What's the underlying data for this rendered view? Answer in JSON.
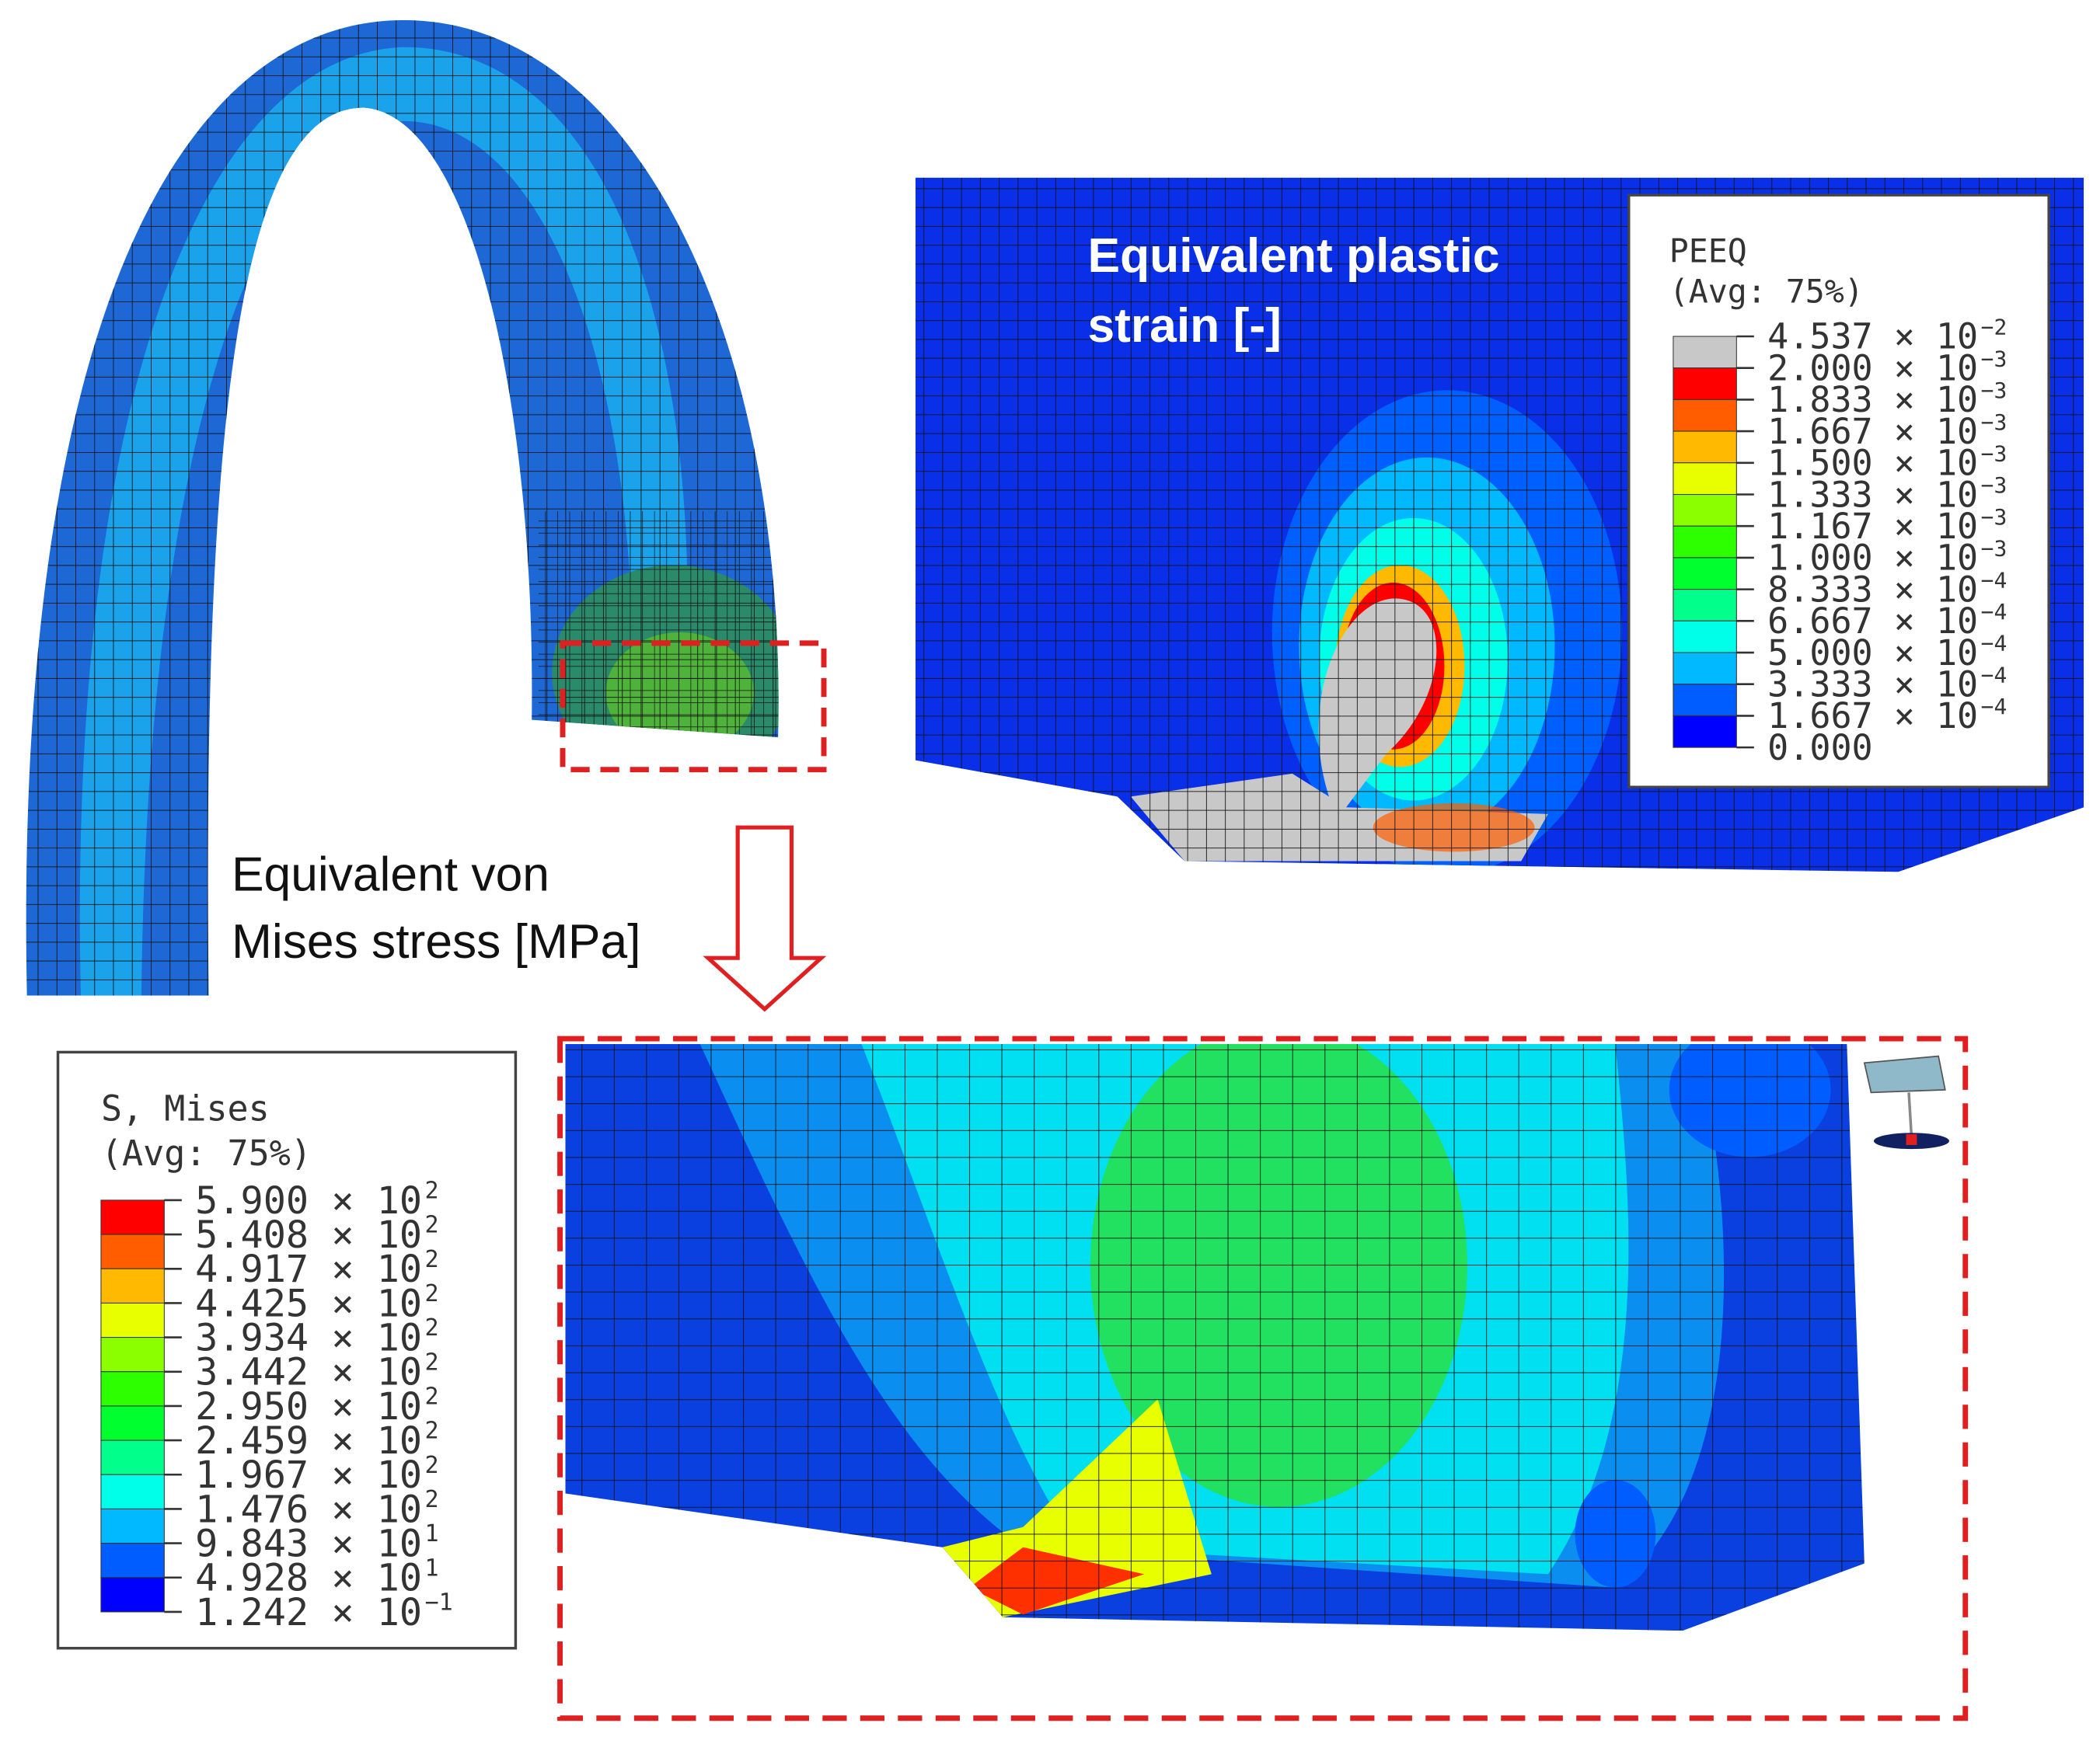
{
  "stress_label": {
    "line1": "Equivalent von",
    "line2": "Mises stress [MPa]"
  },
  "strain_label": {
    "line1": "Equivalent plastic",
    "line2": "strain [-]"
  },
  "mises_legend": {
    "title": "S, Mises",
    "subtitle": "(Avg: 75%)",
    "band_colors": [
      "#ff0000",
      "#ff5d00",
      "#ffb900",
      "#e8ff00",
      "#8bff00",
      "#2eff00",
      "#00ff2e",
      "#00ff8b",
      "#00ffe8",
      "#00b9ff",
      "#005dff",
      "#0000ff"
    ],
    "entries": [
      {
        "text": "5.900 × 10",
        "exp": "2"
      },
      {
        "text": "5.408 × 10",
        "exp": "2"
      },
      {
        "text": "4.917 × 10",
        "exp": "2"
      },
      {
        "text": "4.425 × 10",
        "exp": "2"
      },
      {
        "text": "3.934 × 10",
        "exp": "2"
      },
      {
        "text": "3.442 × 10",
        "exp": "2"
      },
      {
        "text": "2.950 × 10",
        "exp": "2"
      },
      {
        "text": "2.459 × 10",
        "exp": "2"
      },
      {
        "text": "1.967 × 10",
        "exp": "2"
      },
      {
        "text": "1.476 × 10",
        "exp": "2"
      },
      {
        "text": "9.843 × 10",
        "exp": "1"
      },
      {
        "text": "4.928 × 10",
        "exp": "1"
      },
      {
        "text": "1.242 × 10",
        "exp": "−1"
      }
    ]
  },
  "peeq_legend": {
    "title": "PEEQ",
    "subtitle": "(Avg: 75%)",
    "band_colors": [
      "#c8c8c8",
      "#ff0000",
      "#ff5d00",
      "#ffb900",
      "#e8ff00",
      "#8bff00",
      "#2eff00",
      "#00ff2e",
      "#00ff8b",
      "#00ffe8",
      "#00b9ff",
      "#005dff",
      "#0000ff"
    ],
    "entries": [
      {
        "text": "4.537 × 10",
        "exp": "−2"
      },
      {
        "text": "2.000 × 10",
        "exp": "−3"
      },
      {
        "text": "1.833 × 10",
        "exp": "−3"
      },
      {
        "text": "1.667 × 10",
        "exp": "−3"
      },
      {
        "text": "1.500 × 10",
        "exp": "−3"
      },
      {
        "text": "1.333 × 10",
        "exp": "−3"
      },
      {
        "text": "1.167 × 10",
        "exp": "−3"
      },
      {
        "text": "1.000 × 10",
        "exp": "−3"
      },
      {
        "text": "8.333 × 10",
        "exp": "−4"
      },
      {
        "text": "6.667 × 10",
        "exp": "−4"
      },
      {
        "text": "5.000 × 10",
        "exp": "−4"
      },
      {
        "text": "3.333 × 10",
        "exp": "−4"
      },
      {
        "text": "1.667 × 10",
        "exp": "−4"
      },
      {
        "text": "0.000"
      }
    ]
  }
}
